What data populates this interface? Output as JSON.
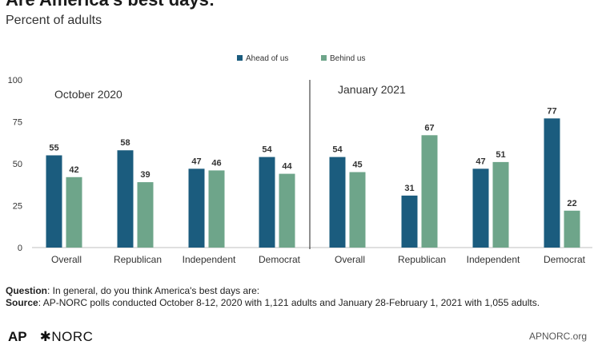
{
  "chart_data": {
    "type": "bar",
    "title": "Are America's best days:",
    "subtitle": "Percent of adults",
    "ylim": [
      0,
      100
    ],
    "yticks": [
      0,
      25,
      50,
      75,
      100
    ],
    "legend_position": "top-center",
    "colors": {
      "ahead": "#1b5c7e",
      "behind": "#6ea58a"
    },
    "panels": [
      {
        "label": "October 2020",
        "categories": [
          "Overall",
          "Republican",
          "Independent",
          "Democrat"
        ],
        "series": [
          {
            "name": "Ahead of us",
            "values": [
              55,
              58,
              47,
              54
            ]
          },
          {
            "name": "Behind us",
            "values": [
              42,
              39,
              46,
              44
            ]
          }
        ]
      },
      {
        "label": "January 2021",
        "categories": [
          "Overall",
          "Republican",
          "Independent",
          "Democrat"
        ],
        "series": [
          {
            "name": "Ahead of us",
            "values": [
              54,
              31,
              47,
              77
            ]
          },
          {
            "name": "Behind us",
            "values": [
              45,
              67,
              51,
              22
            ]
          }
        ]
      }
    ]
  },
  "footer": {
    "question_label": "Question",
    "question_text": ": In general, do you think America's best days are:",
    "source_label": "Source",
    "source_text": ": AP-NORC polls conducted October 8-12, 2020 with 1,121 adults and January 28-February 1, 2021 with 1,055 adults.",
    "logo_ap": "AP",
    "logo_norc": "✱NORC",
    "site": "APNORC.org"
  }
}
